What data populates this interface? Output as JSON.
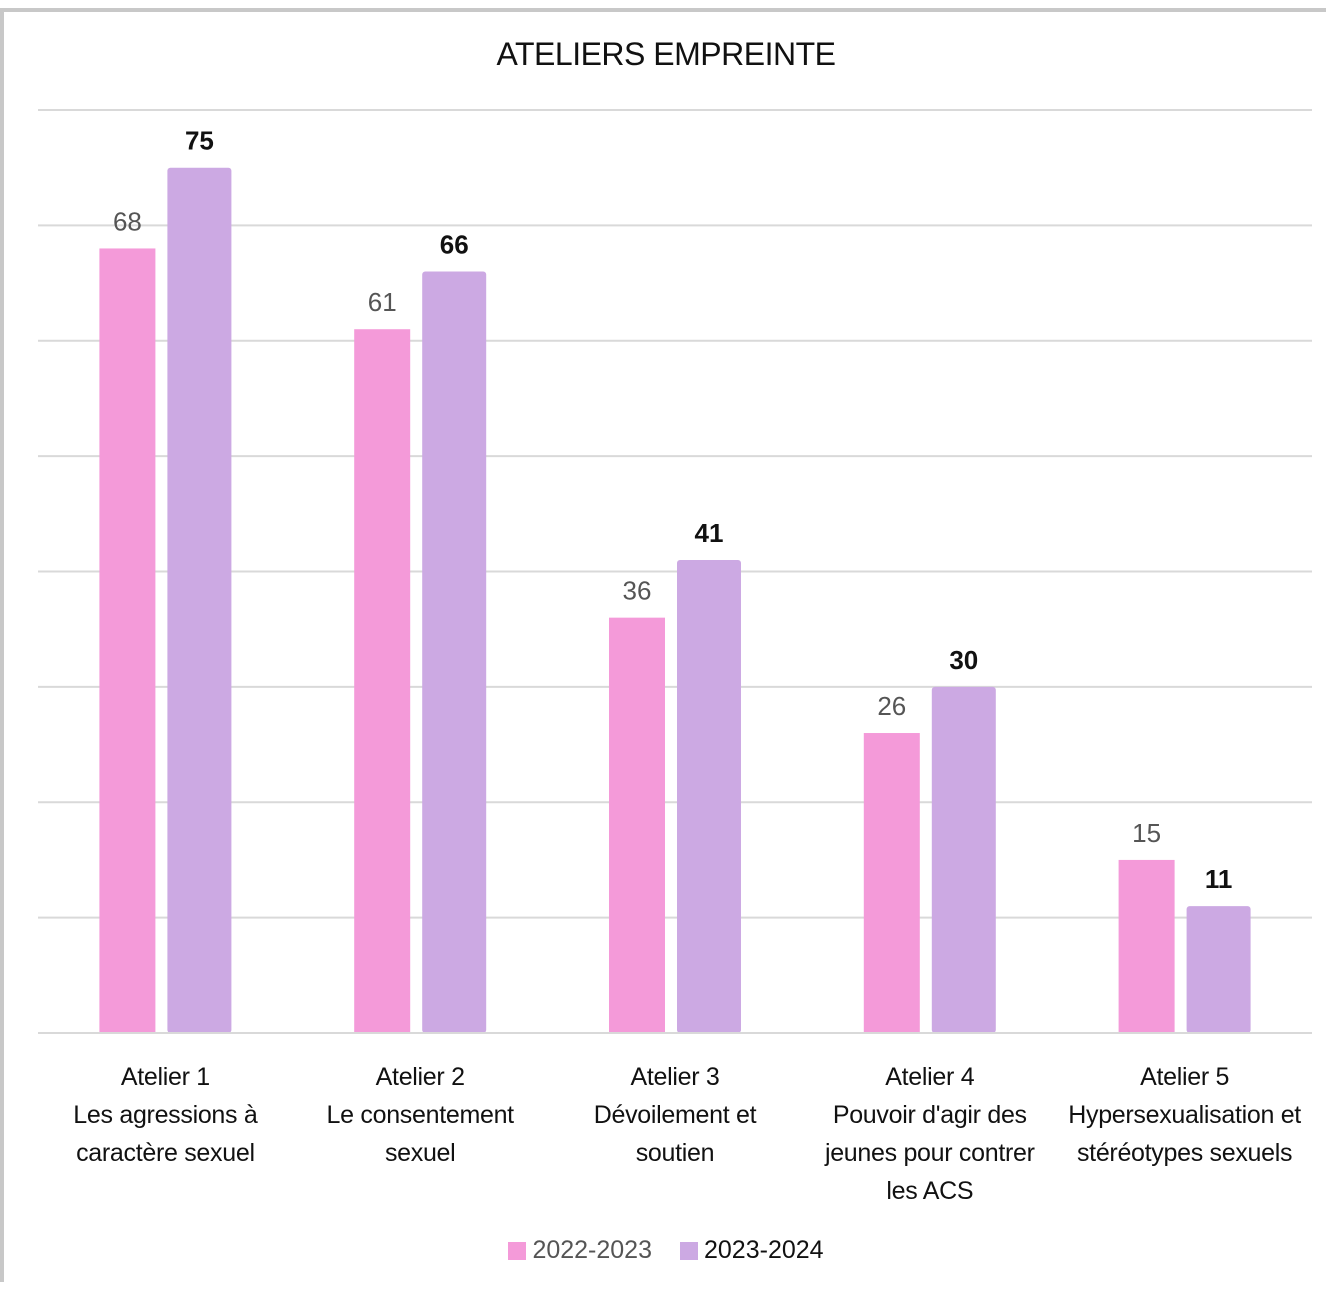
{
  "chart_data": {
    "type": "bar",
    "title": "ATELIERS EMPREINTE",
    "categories": [
      "Atelier 1\nLes agressions à\ncaractère sexuel",
      "Atelier 2\nLe consentement\nsexuel",
      "Atelier 3\nDévoilement et\nsoutien",
      "Atelier 4\nPouvoir d'agir des\njeunes pour contrer\nles ACS",
      "Atelier 5\nHypersexualisation et\nstéréotypes sexuels"
    ],
    "series": [
      {
        "name": "2022-2023",
        "values": [
          68,
          61,
          36,
          26,
          15
        ],
        "color": "#f49ad9"
      },
      {
        "name": "2023-2024",
        "values": [
          75,
          66,
          41,
          30,
          11
        ],
        "color": "#cca9e3"
      }
    ],
    "ylim": [
      0,
      80
    ],
    "grid": true,
    "legend_position": "bottom"
  }
}
